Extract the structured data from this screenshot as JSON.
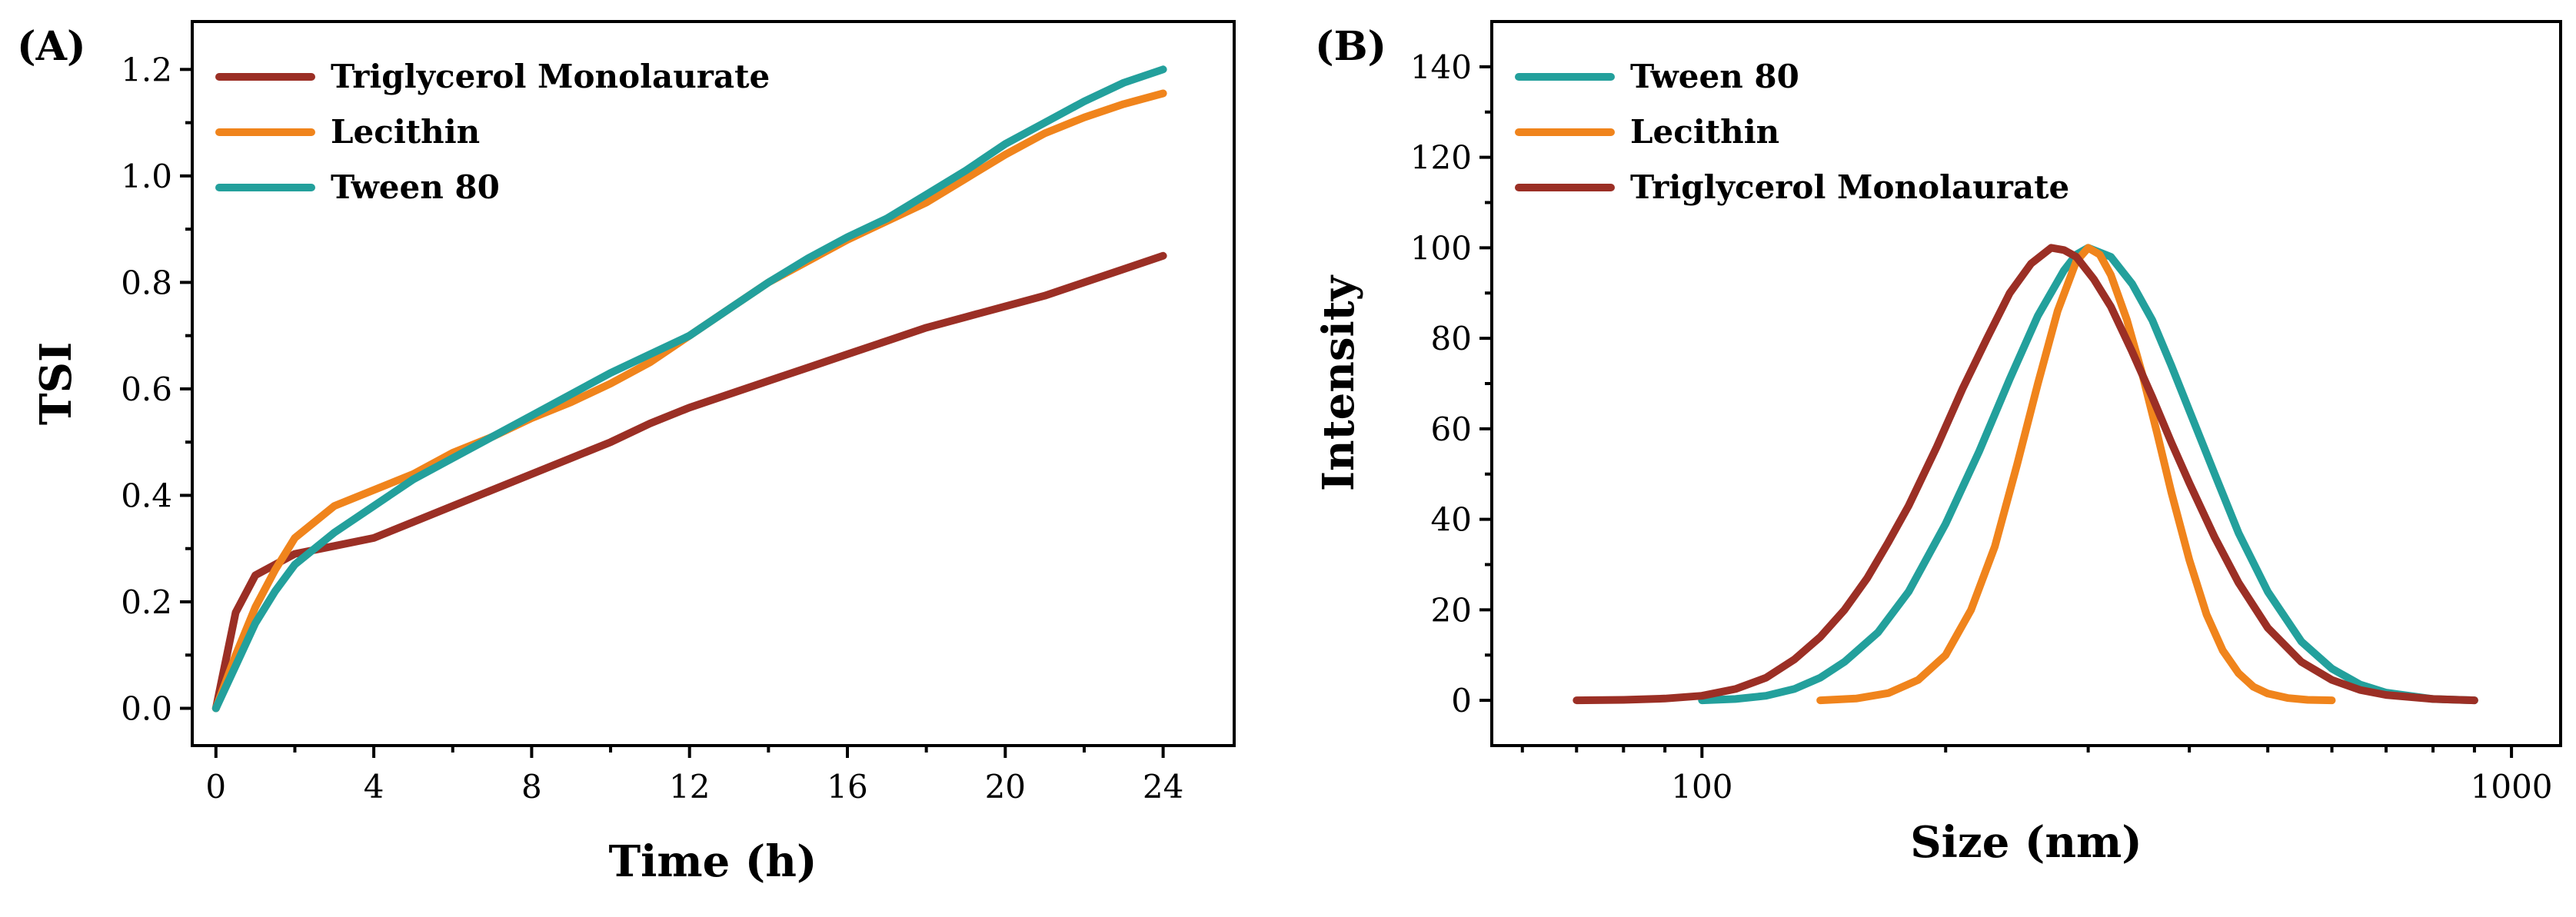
{
  "chart_data": [
    {
      "panel_label": "(A)",
      "type": "line",
      "xlabel": "Time (h)",
      "ylabel": "TSI",
      "xlim": [
        -0.6,
        25.8
      ],
      "ylim": [
        -0.07,
        1.29
      ],
      "xticks": [
        0,
        4,
        8,
        12,
        16,
        20,
        24
      ],
      "yticks": [
        0.0,
        0.2,
        0.4,
        0.6,
        0.8,
        1.0,
        1.2
      ],
      "xtick_labels": [
        "0",
        "4",
        "8",
        "12",
        "16",
        "20",
        "24"
      ],
      "ytick_labels": [
        "0.0",
        "0.2",
        "0.4",
        "0.6",
        "0.8",
        "1.0",
        "1.2"
      ],
      "legend_position": "top-left",
      "series": [
        {
          "name": "Triglycerol Monolaurate",
          "color": "#9b2f25",
          "x": [
            0,
            0.5,
            1,
            1.5,
            2,
            3,
            4,
            5,
            6,
            7,
            8,
            9,
            10,
            11,
            12,
            13,
            14,
            15,
            16,
            17,
            18,
            19,
            20,
            21,
            22,
            23,
            24
          ],
          "y": [
            0.0,
            0.18,
            0.25,
            0.27,
            0.29,
            0.305,
            0.32,
            0.35,
            0.38,
            0.41,
            0.44,
            0.47,
            0.5,
            0.535,
            0.565,
            0.59,
            0.615,
            0.64,
            0.665,
            0.69,
            0.715,
            0.735,
            0.755,
            0.775,
            0.8,
            0.825,
            0.85
          ]
        },
        {
          "name": "Lecithin",
          "color": "#f0841c",
          "x": [
            0,
            0.5,
            1,
            1.5,
            2,
            3,
            4,
            5,
            6,
            7,
            8,
            9,
            10,
            11,
            12,
            13,
            14,
            15,
            16,
            17,
            18,
            19,
            20,
            21,
            22,
            23,
            24
          ],
          "y": [
            0.0,
            0.1,
            0.19,
            0.26,
            0.32,
            0.38,
            0.41,
            0.44,
            0.48,
            0.51,
            0.545,
            0.575,
            0.61,
            0.65,
            0.7,
            0.75,
            0.8,
            0.84,
            0.88,
            0.915,
            0.95,
            0.995,
            1.04,
            1.08,
            1.11,
            1.135,
            1.155
          ]
        },
        {
          "name": "Tween 80",
          "color": "#23a09c",
          "x": [
            0,
            0.5,
            1,
            1.5,
            2,
            3,
            4,
            5,
            6,
            7,
            8,
            9,
            10,
            11,
            12,
            13,
            14,
            15,
            16,
            17,
            18,
            19,
            20,
            21,
            22,
            23,
            24
          ],
          "y": [
            0.0,
            0.08,
            0.16,
            0.22,
            0.27,
            0.33,
            0.38,
            0.43,
            0.47,
            0.51,
            0.55,
            0.59,
            0.63,
            0.665,
            0.7,
            0.75,
            0.8,
            0.845,
            0.885,
            0.92,
            0.965,
            1.01,
            1.06,
            1.1,
            1.14,
            1.175,
            1.2
          ]
        }
      ]
    },
    {
      "panel_label": "(B)",
      "type": "line",
      "xscale": "log",
      "xlabel": "Size (nm)",
      "ylabel": "Intensity",
      "xlim": [
        55,
        1150
      ],
      "ylim": [
        -10,
        150
      ],
      "xticks": [
        100,
        1000
      ],
      "yticks": [
        0,
        20,
        40,
        60,
        80,
        100,
        120,
        140
      ],
      "xtick_labels": [
        "100",
        "1000"
      ],
      "ytick_labels": [
        "0",
        "20",
        "40",
        "60",
        "80",
        "100",
        "120",
        "140"
      ],
      "legend_position": "top-left",
      "series": [
        {
          "name": "Tween 80",
          "color": "#23a09c",
          "x": [
            100,
            110,
            120,
            130,
            140,
            150,
            165,
            180,
            200,
            220,
            240,
            260,
            280,
            290,
            300,
            320,
            340,
            360,
            380,
            400,
            430,
            460,
            500,
            550,
            600,
            650,
            700,
            800,
            900
          ],
          "y": [
            0,
            0.3,
            1,
            2.5,
            5,
            8.5,
            15,
            24,
            39,
            55,
            71,
            85,
            95,
            98.5,
            100,
            98,
            92,
            84,
            74,
            64,
            50,
            37,
            24,
            13,
            7,
            3.5,
            1.7,
            0.3,
            0
          ]
        },
        {
          "name": "Lecithin",
          "color": "#f0841c",
          "x": [
            140,
            155,
            170,
            185,
            200,
            215,
            230,
            245,
            260,
            275,
            290,
            300,
            310,
            320,
            335,
            350,
            365,
            380,
            400,
            420,
            440,
            460,
            480,
            500,
            530,
            560,
            600
          ],
          "y": [
            0,
            0.4,
            1.6,
            4.5,
            10,
            20,
            34,
            52,
            70,
            86,
            97,
            100,
            98.5,
            94,
            84,
            72,
            59,
            46,
            31,
            19,
            11,
            6,
            3,
            1.5,
            0.5,
            0.1,
            0
          ]
        },
        {
          "name": "Triglycerol Monolaurate",
          "color": "#9b2f25",
          "x": [
            70,
            80,
            90,
            100,
            110,
            120,
            130,
            140,
            150,
            160,
            170,
            180,
            195,
            210,
            225,
            240,
            255,
            270,
            280,
            290,
            305,
            320,
            340,
            360,
            380,
            400,
            430,
            460,
            500,
            550,
            600,
            650,
            700,
            800,
            900
          ],
          "y": [
            0,
            0.1,
            0.4,
            1,
            2.5,
            5,
            9,
            14,
            20,
            27,
            35,
            43,
            56,
            69,
            80,
            90,
            96.5,
            100,
            99.5,
            98,
            93,
            87,
            77,
            67,
            57,
            48,
            36,
            26,
            16,
            8.5,
            4.5,
            2.3,
            1.2,
            0.3,
            0
          ]
        }
      ]
    }
  ]
}
